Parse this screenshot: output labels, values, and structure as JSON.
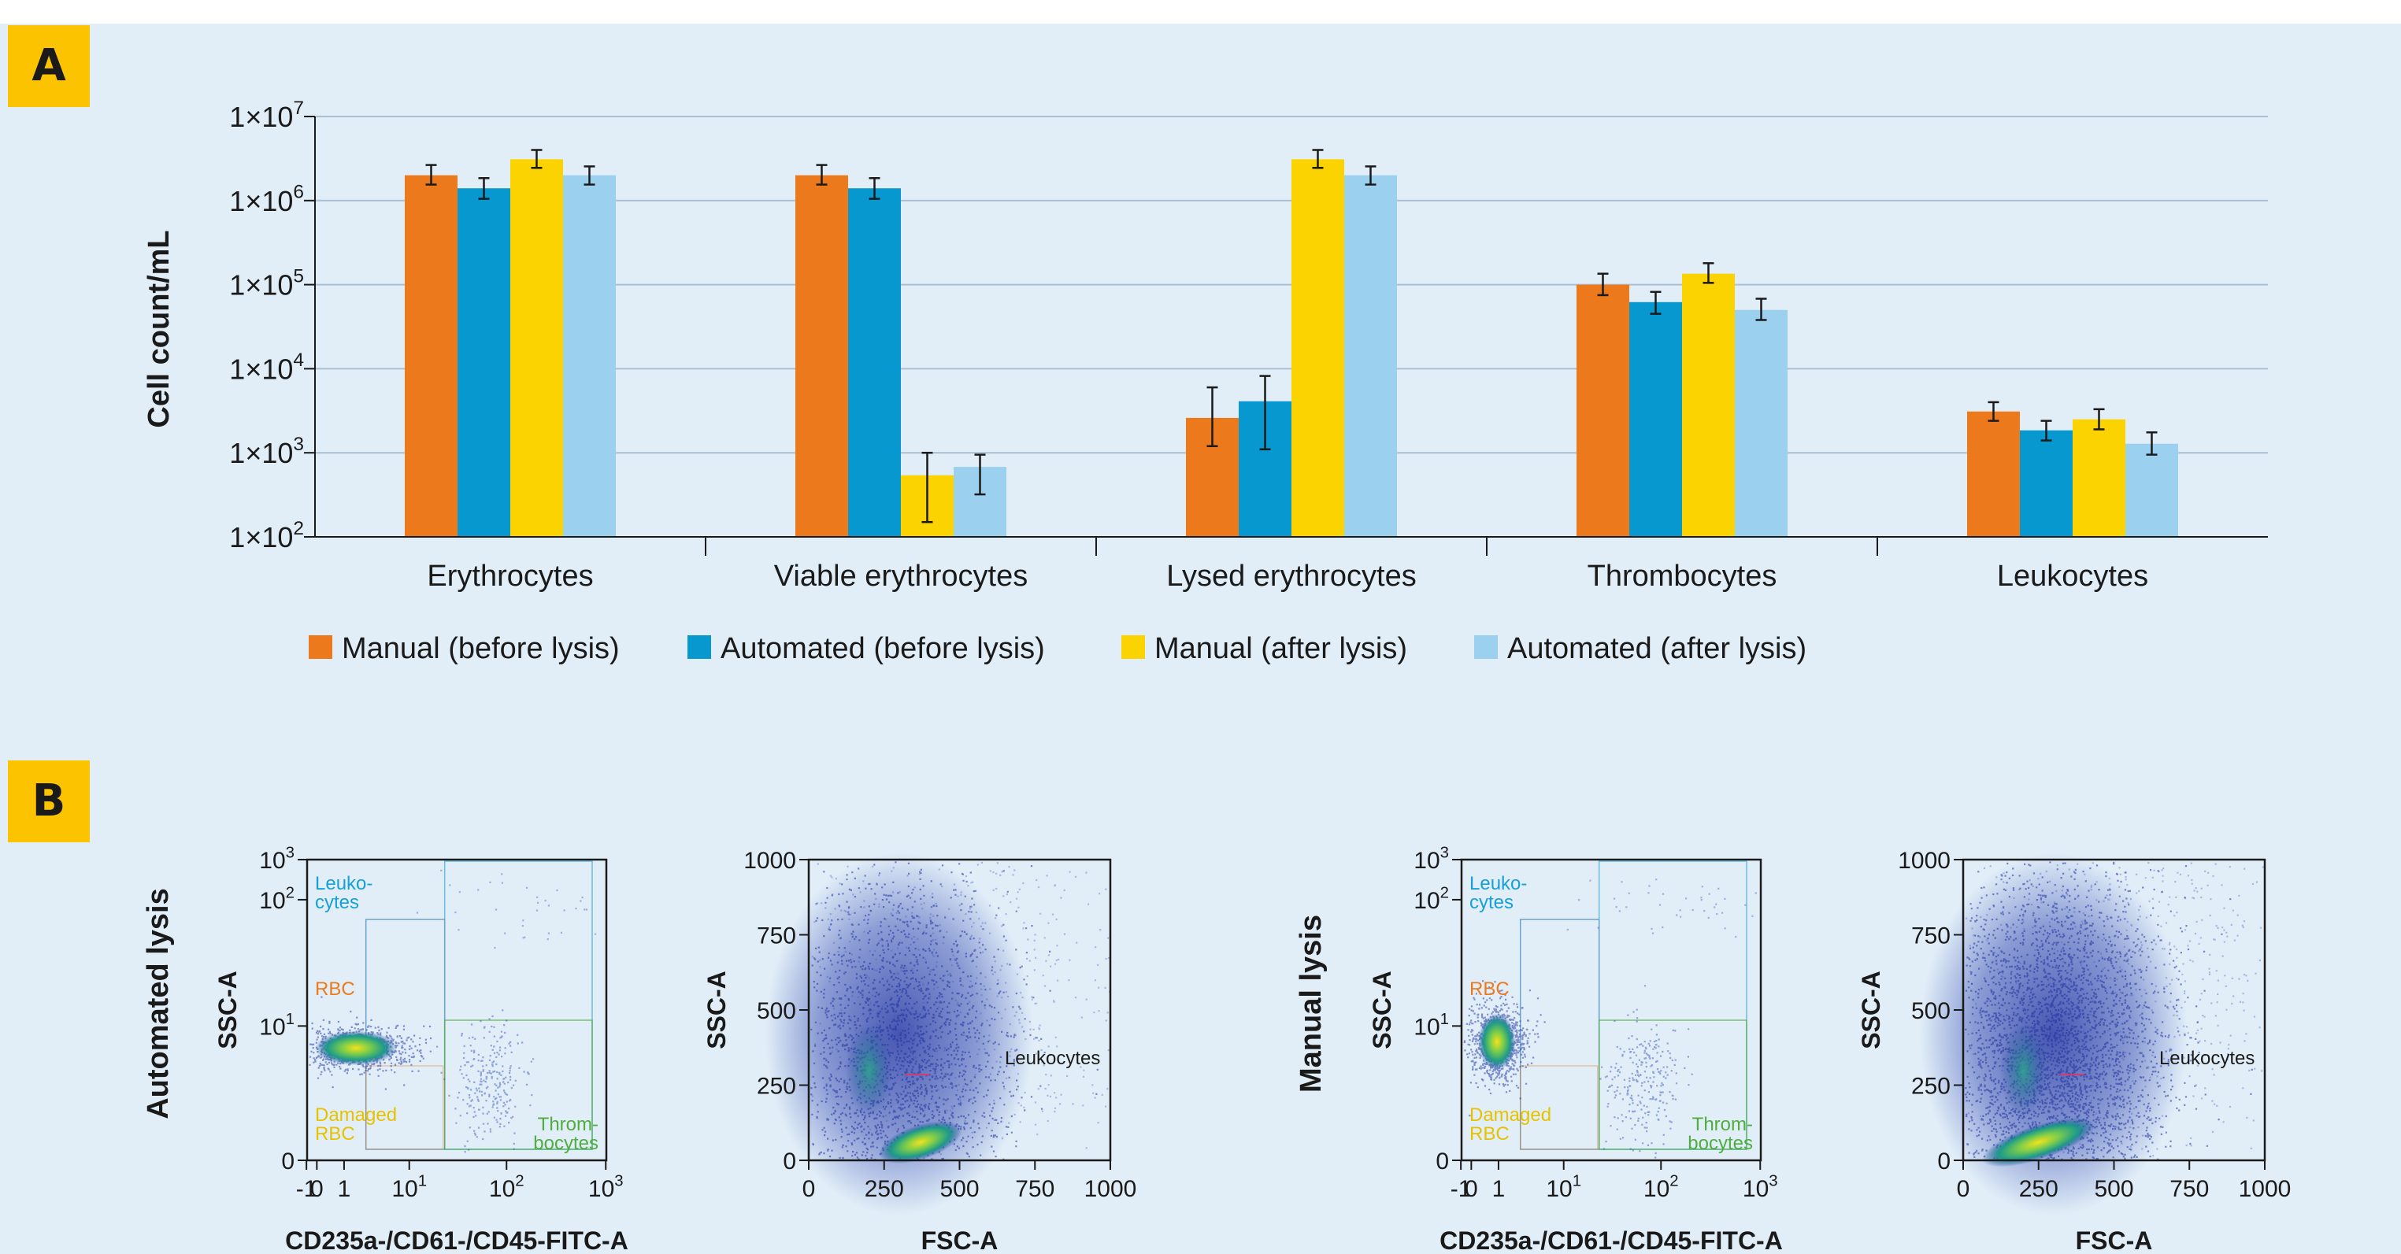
{
  "panels": {
    "a": "A",
    "b": "B"
  },
  "colors": {
    "background": "#e1eef8",
    "panel_tag": "#fcc300",
    "grid": "#a9bfd3"
  },
  "chart_data": [
    {
      "type": "bar",
      "ylabel": "Cell count/mL",
      "yscale": "log",
      "ylim": [
        100,
        10000000
      ],
      "ytick_labels": [
        {
          "base": "1×10",
          "exp": "2",
          "value": 100
        },
        {
          "base": "1×10",
          "exp": "3",
          "value": 1000
        },
        {
          "base": "1×10",
          "exp": "4",
          "value": 10000
        },
        {
          "base": "1×10",
          "exp": "5",
          "value": 100000
        },
        {
          "base": "1×10",
          "exp": "6",
          "value": 1000000
        },
        {
          "base": "1×10",
          "exp": "7",
          "value": 10000000
        }
      ],
      "grid": true,
      "legend_position": "bottom",
      "categories": [
        "Erythrocytes",
        "Viable erythrocytes",
        "Lysed erythrocytes",
        "Thrombocytes",
        "Leukocytes"
      ],
      "series": [
        {
          "name": "Manual (before lysis)",
          "color": "#ec7a1c",
          "values": [
            2000000,
            2000000,
            2600,
            100000,
            3100
          ],
          "err_low": [
            1550000,
            1550000,
            1200,
            75000,
            2400
          ],
          "err_high": [
            2650000,
            2650000,
            6000,
            135000,
            4000
          ]
        },
        {
          "name": "Automated (before lysis)",
          "color": "#0798cf",
          "values": [
            1400000,
            1400000,
            4100,
            62000,
            1850
          ],
          "err_low": [
            1050000,
            1050000,
            1100,
            45000,
            1400
          ],
          "err_high": [
            1850000,
            1850000,
            8200,
            82000,
            2400
          ]
        },
        {
          "name": "Manual (after lysis)",
          "color": "#fbd300",
          "values": [
            3100000,
            540,
            3100000,
            135000,
            2500
          ],
          "err_low": [
            2450000,
            150,
            2450000,
            105000,
            1900
          ],
          "err_high": [
            4000000,
            1000,
            4000000,
            180000,
            3300
          ]
        },
        {
          "name": "Automated (after lysis)",
          "color": "#9bd0ef",
          "values": [
            2000000,
            680,
            2000000,
            50000,
            1280
          ],
          "err_low": [
            1550000,
            320,
            1550000,
            38000,
            950
          ],
          "err_high": [
            2550000,
            950,
            2550000,
            68000,
            1750
          ]
        }
      ]
    },
    {
      "type": "scatter",
      "row_label": "Automated lysis",
      "xlabel": "CD235a-/CD61-/CD45-FITC-A",
      "ylabel": "SSC-A",
      "xscale": "biexponential",
      "yscale": "biexponential",
      "xtick_labels": [
        {
          "base": "-1",
          "exp": ""
        },
        {
          "base": "0",
          "exp": ""
        },
        {
          "base": "1",
          "exp": ""
        },
        {
          "base": "10",
          "exp": "1"
        },
        {
          "base": "10",
          "exp": "2"
        },
        {
          "base": "10",
          "exp": "3"
        }
      ],
      "ytick_labels": [
        {
          "base": "0",
          "exp": ""
        },
        {
          "base": "10",
          "exp": "1"
        },
        {
          "base": "10",
          "exp": "2"
        },
        {
          "base": "10",
          "exp": "3"
        }
      ],
      "gates": [
        {
          "name": "leukocytes",
          "lines": [
            "Leuko-",
            "cytes"
          ],
          "color": "#17a0d8"
        },
        {
          "name": "rbc",
          "lines": [
            "RBC"
          ],
          "color": "#ec7a1c"
        },
        {
          "name": "damaged-rbc",
          "lines": [
            "Damaged",
            "RBC"
          ],
          "color": "#e6c200"
        },
        {
          "name": "thrombocytes",
          "lines": [
            "Throm-",
            "bocytes"
          ],
          "color": "#4fae3f"
        }
      ]
    },
    {
      "type": "scatter",
      "xlabel": "FSC-A",
      "ylabel": "SSC-A",
      "xlim": [
        0,
        1000
      ],
      "ylim": [
        0,
        1000
      ],
      "xticks": [
        "0",
        "250",
        "500",
        "750",
        "1000"
      ],
      "yticks": [
        "0",
        "250",
        "500",
        "750",
        "1000"
      ],
      "annotation": "Leukocytes"
    },
    {
      "type": "scatter",
      "row_label": "Manual lysis",
      "xlabel": "CD235a-/CD61-/CD45-FITC-A",
      "ylabel": "SSC-A",
      "xscale": "biexponential",
      "yscale": "biexponential",
      "xtick_labels": [
        {
          "base": "-1",
          "exp": ""
        },
        {
          "base": "0",
          "exp": ""
        },
        {
          "base": "1",
          "exp": ""
        },
        {
          "base": "10",
          "exp": "1"
        },
        {
          "base": "10",
          "exp": "2"
        },
        {
          "base": "10",
          "exp": "3"
        }
      ],
      "ytick_labels": [
        {
          "base": "0",
          "exp": ""
        },
        {
          "base": "10",
          "exp": "1"
        },
        {
          "base": "10",
          "exp": "2"
        },
        {
          "base": "10",
          "exp": "3"
        }
      ],
      "gates": [
        {
          "name": "leukocytes",
          "lines": [
            "Leuko-",
            "cytes"
          ],
          "color": "#17a0d8"
        },
        {
          "name": "rbc",
          "lines": [
            "RBC"
          ],
          "color": "#ec7a1c"
        },
        {
          "name": "damaged-rbc",
          "lines": [
            "Damaged",
            "RBC"
          ],
          "color": "#e6c200"
        },
        {
          "name": "thrombocytes",
          "lines": [
            "Throm-",
            "bocytes"
          ],
          "color": "#4fae3f"
        }
      ]
    },
    {
      "type": "scatter",
      "xlabel": "FSC-A",
      "ylabel": "SSC-A",
      "xlim": [
        0,
        1000
      ],
      "ylim": [
        0,
        1000
      ],
      "xticks": [
        "0",
        "250",
        "500",
        "750",
        "1000"
      ],
      "yticks": [
        "0",
        "250",
        "500",
        "750",
        "1000"
      ],
      "annotation": "Leukocytes"
    }
  ]
}
